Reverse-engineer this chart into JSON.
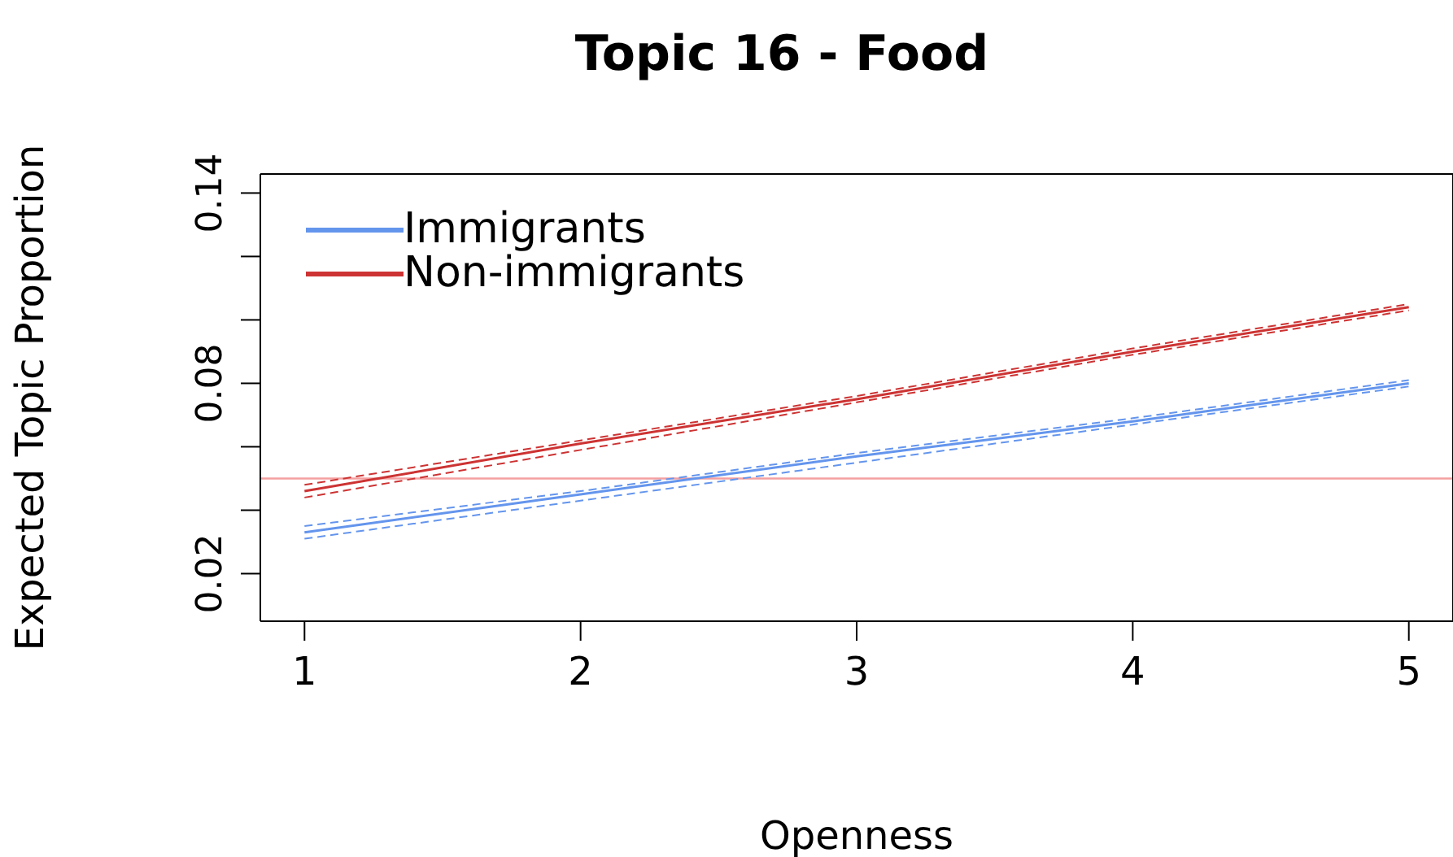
{
  "chart_data": {
    "type": "line",
    "title": "Topic 16 - Food",
    "xlabel": "Openness",
    "ylabel": "Expected Topic Proportion",
    "x": [
      1,
      2,
      3,
      4,
      5
    ],
    "series": [
      {
        "name": "Immigrants",
        "color": "#6495ed",
        "values": [
          0.033,
          0.045,
          0.057,
          0.068,
          0.08
        ]
      },
      {
        "name": "Non-immigrants",
        "color": "#cd3333",
        "values": [
          0.046,
          0.061,
          0.075,
          0.09,
          0.104
        ]
      },
      {
        "color": "#6495ed",
        "line_style": "dashed",
        "values": [
          0.031,
          0.043,
          0.055,
          0.067,
          0.079
        ]
      },
      {
        "color": "#6495ed",
        "line_style": "dashed",
        "values": [
          0.035,
          0.046,
          0.058,
          0.069,
          0.081
        ]
      },
      {
        "color": "#cd3333",
        "line_style": "dashed",
        "values": [
          0.044,
          0.059,
          0.074,
          0.089,
          0.103
        ]
      },
      {
        "color": "#cd3333",
        "line_style": "dashed",
        "values": [
          0.048,
          0.062,
          0.076,
          0.091,
          0.105
        ]
      }
    ],
    "ref_lines": [
      {
        "axis": "y",
        "value": 0.05,
        "color": "#f4a0a0"
      }
    ],
    "xlim": [
      0.84,
      5.16
    ],
    "xticks": [
      1,
      2,
      3,
      4,
      5
    ],
    "ylim": [
      0.005,
      0.146
    ],
    "yticks": [
      0.02,
      {
        "value": 0.04,
        "label": null
      },
      {
        "value": 0.06,
        "label": null
      },
      0.08,
      {
        "value": 0.1,
        "label": null
      },
      {
        "value": 0.12,
        "label": null
      },
      0.14
    ],
    "grid": false,
    "legend": "top left",
    "marker": "none",
    "line_style": "solid"
  }
}
